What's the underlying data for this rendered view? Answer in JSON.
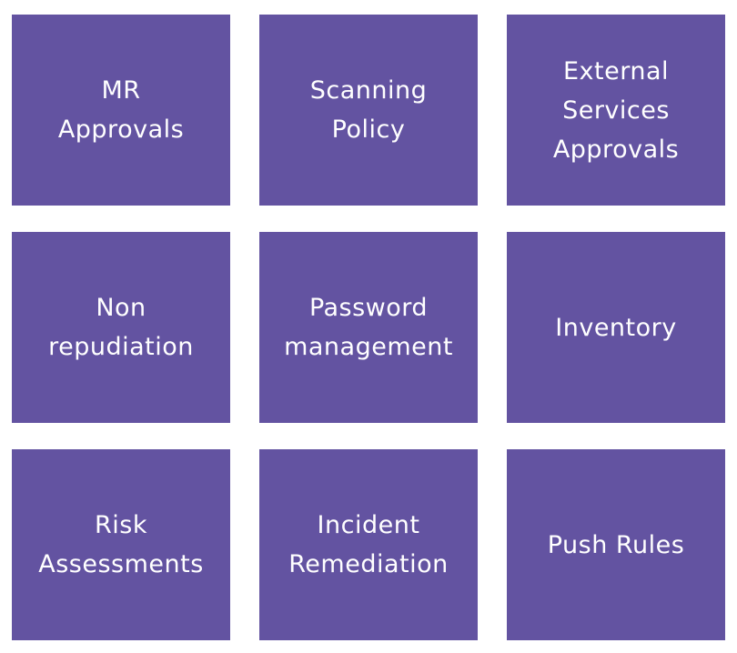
{
  "colors": {
    "tile_background": "#6353a1",
    "tile_text": "#ffffff",
    "page_background": "#ffffff"
  },
  "tiles": [
    {
      "label": "MR\nApprovals"
    },
    {
      "label": "Scanning\nPolicy"
    },
    {
      "label": "External\nServices\nApprovals"
    },
    {
      "label": "Non\nrepudiation"
    },
    {
      "label": "Password\nmanagement"
    },
    {
      "label": "Inventory"
    },
    {
      "label": "Risk\nAssessments"
    },
    {
      "label": "Incident\nRemediation"
    },
    {
      "label": "Push Rules"
    }
  ]
}
